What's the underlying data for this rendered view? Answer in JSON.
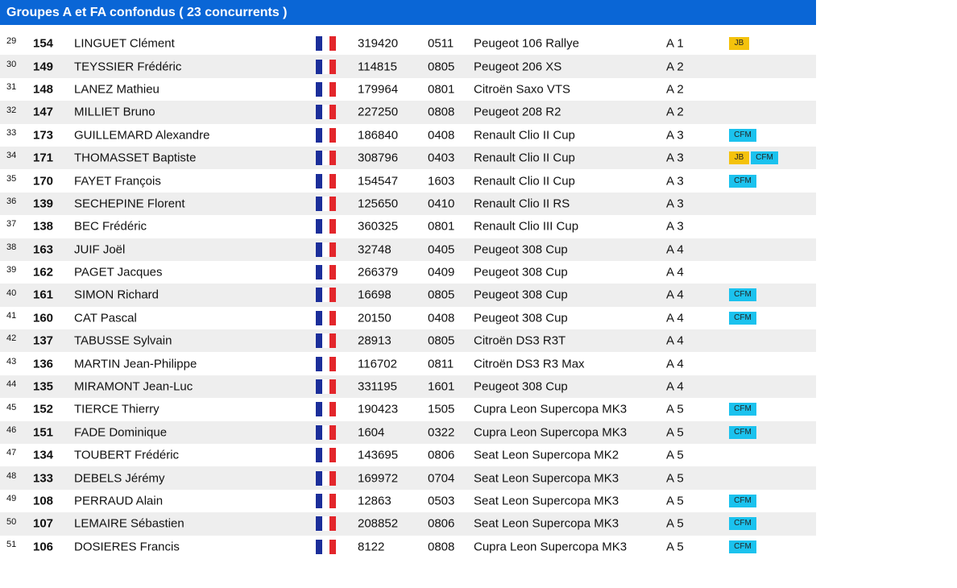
{
  "header": {
    "title": "Groupes A et FA confondus ( 23 concurrents )"
  },
  "colors": {
    "header_bg": "#0a66d6",
    "badge_jb": "#f4c20d",
    "badge_cfm": "#1bc2ee",
    "alt_row": "#eeeeee"
  },
  "rows": [
    {
      "pos": "29",
      "num": "154",
      "name": "LINGUET Clément",
      "flag": "france-flag",
      "license": "319420",
      "code": "0511",
      "car": "Peugeot 106 Rallye",
      "group": "A 1",
      "badges": [
        "JB"
      ]
    },
    {
      "pos": "30",
      "num": "149",
      "name": "TEYSSIER Frédéric",
      "flag": "france-flag",
      "license": "114815",
      "code": "0805",
      "car": "Peugeot 206 XS",
      "group": "A 2",
      "badges": []
    },
    {
      "pos": "31",
      "num": "148",
      "name": "LANEZ Mathieu",
      "flag": "france-flag",
      "license": "179964",
      "code": "0801",
      "car": "Citroën Saxo VTS",
      "group": "A 2",
      "badges": []
    },
    {
      "pos": "32",
      "num": "147",
      "name": "MILLIET Bruno",
      "flag": "france-flag",
      "license": "227250",
      "code": "0808",
      "car": "Peugeot 208 R2",
      "group": "A 2",
      "badges": []
    },
    {
      "pos": "33",
      "num": "173",
      "name": "GUILLEMARD Alexandre",
      "flag": "france-flag",
      "license": "186840",
      "code": "0408",
      "car": "Renault Clio II Cup",
      "group": "A 3",
      "badges": [
        "CFM"
      ]
    },
    {
      "pos": "34",
      "num": "171",
      "name": "THOMASSET Baptiste",
      "flag": "france-flag",
      "license": "308796",
      "code": "0403",
      "car": "Renault Clio II Cup",
      "group": "A 3",
      "badges": [
        "JB",
        "CFM"
      ]
    },
    {
      "pos": "35",
      "num": "170",
      "name": "FAYET François",
      "flag": "france-flag",
      "license": "154547",
      "code": "1603",
      "car": "Renault Clio II Cup",
      "group": "A 3",
      "badges": [
        "CFM"
      ]
    },
    {
      "pos": "36",
      "num": "139",
      "name": "SECHEPINE Florent",
      "flag": "france-flag",
      "license": "125650",
      "code": "0410",
      "car": "Renault Clio II RS",
      "group": "A 3",
      "badges": []
    },
    {
      "pos": "37",
      "num": "138",
      "name": "BEC Frédéric",
      "flag": "france-flag",
      "license": "360325",
      "code": "0801",
      "car": "Renault Clio III Cup",
      "group": "A 3",
      "badges": []
    },
    {
      "pos": "38",
      "num": "163",
      "name": "JUIF Joël",
      "flag": "france-flag",
      "license": "32748",
      "code": "0405",
      "car": "Peugeot 308 Cup",
      "group": "A 4",
      "badges": []
    },
    {
      "pos": "39",
      "num": "162",
      "name": "PAGET Jacques",
      "flag": "france-flag",
      "license": "266379",
      "code": "0409",
      "car": "Peugeot 308 Cup",
      "group": "A 4",
      "badges": []
    },
    {
      "pos": "40",
      "num": "161",
      "name": "SIMON Richard",
      "flag": "france-flag",
      "license": "16698",
      "code": "0805",
      "car": "Peugeot 308 Cup",
      "group": "A 4",
      "badges": [
        "CFM"
      ]
    },
    {
      "pos": "41",
      "num": "160",
      "name": "CAT Pascal",
      "flag": "france-flag",
      "license": "20150",
      "code": "0408",
      "car": "Peugeot 308 Cup",
      "group": "A 4",
      "badges": [
        "CFM"
      ]
    },
    {
      "pos": "42",
      "num": "137",
      "name": "TABUSSE Sylvain",
      "flag": "france-flag",
      "license": "28913",
      "code": "0805",
      "car": "Citroën DS3 R3T",
      "group": "A 4",
      "badges": []
    },
    {
      "pos": "43",
      "num": "136",
      "name": "MARTIN Jean-Philippe",
      "flag": "france-flag",
      "license": "116702",
      "code": "0811",
      "car": "Citroën DS3 R3 Max",
      "group": "A 4",
      "badges": []
    },
    {
      "pos": "44",
      "num": "135",
      "name": "MIRAMONT Jean-Luc",
      "flag": "france-flag",
      "license": "331195",
      "code": "1601",
      "car": "Peugeot 308 Cup",
      "group": "A 4",
      "badges": []
    },
    {
      "pos": "45",
      "num": "152",
      "name": "TIERCE Thierry",
      "flag": "france-flag",
      "license": "190423",
      "code": "1505",
      "car": "Cupra Leon Supercopa MK3",
      "group": "A 5",
      "badges": [
        "CFM"
      ]
    },
    {
      "pos": "46",
      "num": "151",
      "name": "FADE Dominique",
      "flag": "france-flag",
      "license": "1604",
      "code": "0322",
      "car": "Cupra Leon Supercopa MK3",
      "group": "A 5",
      "badges": [
        "CFM"
      ]
    },
    {
      "pos": "47",
      "num": "134",
      "name": "TOUBERT Frédéric",
      "flag": "france-flag",
      "license": "143695",
      "code": "0806",
      "car": "Seat Leon Supercopa MK2",
      "group": "A 5",
      "badges": []
    },
    {
      "pos": "48",
      "num": "133",
      "name": "DEBELS Jérémy",
      "flag": "france-flag",
      "license": "169972",
      "code": "0704",
      "car": "Seat Leon Supercopa MK3",
      "group": "A 5",
      "badges": []
    },
    {
      "pos": "49",
      "num": "108",
      "name": "PERRAUD Alain",
      "flag": "france-flag",
      "license": "12863",
      "code": "0503",
      "car": "Seat Leon Supercopa MK3",
      "group": "A 5",
      "badges": [
        "CFM"
      ]
    },
    {
      "pos": "50",
      "num": "107",
      "name": "LEMAIRE Sébastien",
      "flag": "france-flag",
      "license": "208852",
      "code": "0806",
      "car": "Seat Leon Supercopa MK3",
      "group": "A 5",
      "badges": [
        "CFM"
      ]
    },
    {
      "pos": "51",
      "num": "106",
      "name": "DOSIERES Francis",
      "flag": "france-flag",
      "license": "8122",
      "code": "0808",
      "car": "Cupra Leon Supercopa MK3",
      "group": "A 5",
      "badges": [
        "CFM"
      ]
    }
  ]
}
